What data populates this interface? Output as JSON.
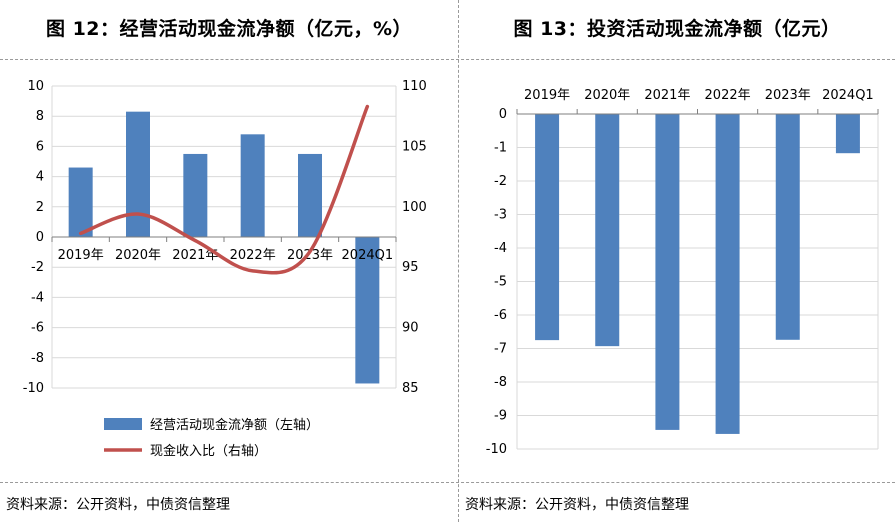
{
  "chart_data": [
    {
      "id": "chart12",
      "type": "bar+line",
      "title": "图 12：经营活动现金流净额（亿元，%）",
      "categories": [
        "2019年",
        "2020年",
        "2021年",
        "2022年",
        "2023年",
        "2024Q1"
      ],
      "series": [
        {
          "name": "经营活动现金流净额（左轴）",
          "type": "bar",
          "axis": "left",
          "color": "#4f81bd",
          "values": [
            4.6,
            8.3,
            5.5,
            6.8,
            5.5,
            -9.7
          ]
        },
        {
          "name": "现金收入比（右轴）",
          "type": "line",
          "axis": "right",
          "color": "#c0504d",
          "values": [
            97.8,
            99.4,
            97.2,
            94.7,
            96.3,
            108.3
          ]
        }
      ],
      "left_ylim": [
        -10,
        10
      ],
      "left_ticks": [
        "10",
        "8",
        "6",
        "4",
        "2",
        "0",
        "-2",
        "-4",
        "-6",
        "-8",
        "-10"
      ],
      "right_ylim": [
        85,
        110
      ],
      "right_ticks": [
        "110",
        "105",
        "100",
        "95",
        "90",
        "85"
      ],
      "grid": true,
      "legend_position": "bottom",
      "source": "资料来源：公开资料，中债资信整理"
    },
    {
      "id": "chart13",
      "type": "bar",
      "title": "图 13：投资活动现金流净额（亿元）",
      "categories": [
        "2019年",
        "2020年",
        "2021年",
        "2022年",
        "2023年",
        "2024Q1"
      ],
      "series": [
        {
          "name": "投资活动现金流净额",
          "type": "bar",
          "color": "#4f81bd",
          "values": [
            -6.75,
            -6.93,
            -9.43,
            -9.55,
            -6.74,
            -1.17
          ]
        }
      ],
      "ylim": [
        -10,
        0
      ],
      "ticks": [
        "0",
        "-1",
        "-2",
        "-3",
        "-4",
        "-5",
        "-6",
        "-7",
        "-8",
        "-9",
        "-10"
      ],
      "grid": true,
      "source": "资料来源：公开资料，中债资信整理"
    }
  ]
}
